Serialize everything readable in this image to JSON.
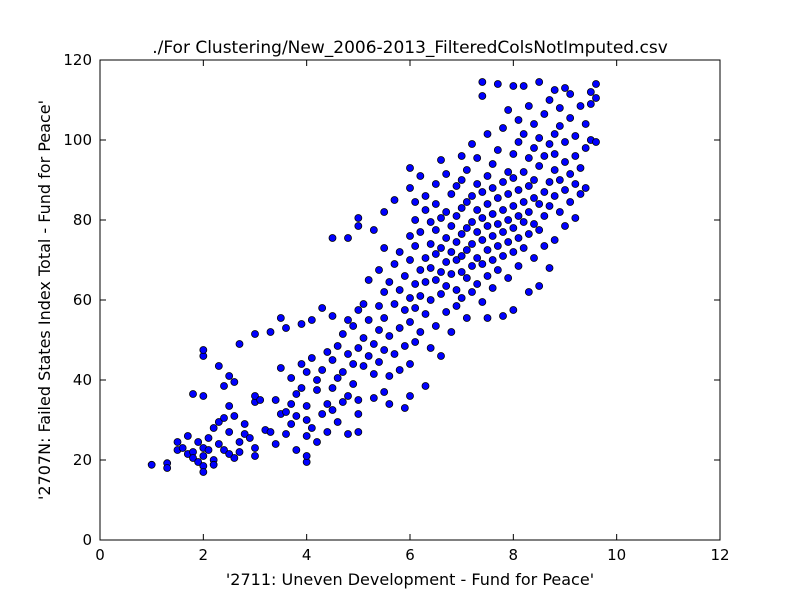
{
  "chart_data": {
    "type": "scatter",
    "title": "./For Clustering/New_2006-2013_FilteredColsNotImputed.csv",
    "xlabel": "'2711: Uneven Development - Fund for Peace'",
    "ylabel": "'2707N: Failed States Index Total - Fund for Peace'",
    "xlim": [
      0,
      12
    ],
    "ylim": [
      0,
      120
    ],
    "xticks": [
      "0",
      "2",
      "4",
      "6",
      "8",
      "10",
      "12"
    ],
    "yticks": [
      "0",
      "20",
      "40",
      "60",
      "80",
      "100",
      "120"
    ],
    "grid": false,
    "legend": "none",
    "marker_color": "#0000ff",
    "marker_edge_color": "#000000",
    "points": [
      [
        1.0,
        18.8
      ],
      [
        1.3,
        19.2
      ],
      [
        1.3,
        18.0
      ],
      [
        1.5,
        22.5
      ],
      [
        1.5,
        24.5
      ],
      [
        1.6,
        23.0
      ],
      [
        1.7,
        21.5
      ],
      [
        1.7,
        26.0
      ],
      [
        1.8,
        22.0
      ],
      [
        1.8,
        20.5
      ],
      [
        1.8,
        36.5
      ],
      [
        1.9,
        19.5
      ],
      [
        1.9,
        24.5
      ],
      [
        2.0,
        23.0
      ],
      [
        2.0,
        21.0
      ],
      [
        2.0,
        18.5
      ],
      [
        2.0,
        17.0
      ],
      [
        2.0,
        46.0
      ],
      [
        2.0,
        47.5
      ],
      [
        2.0,
        36.0
      ],
      [
        2.1,
        22.5
      ],
      [
        2.1,
        25.5
      ],
      [
        2.2,
        20.0
      ],
      [
        2.2,
        18.8
      ],
      [
        2.2,
        28.0
      ],
      [
        2.3,
        29.5
      ],
      [
        2.3,
        24.0
      ],
      [
        2.3,
        43.5
      ],
      [
        2.4,
        38.5
      ],
      [
        2.4,
        22.5
      ],
      [
        2.4,
        30.5
      ],
      [
        2.5,
        21.5
      ],
      [
        2.5,
        27.0
      ],
      [
        2.5,
        41.0
      ],
      [
        2.5,
        33.5
      ],
      [
        2.6,
        20.5
      ],
      [
        2.6,
        31.0
      ],
      [
        2.6,
        39.5
      ],
      [
        2.7,
        24.5
      ],
      [
        2.7,
        22.0
      ],
      [
        2.7,
        49.0
      ],
      [
        2.8,
        29.0
      ],
      [
        2.8,
        26.5
      ],
      [
        2.9,
        25.5
      ],
      [
        3.0,
        21.0
      ],
      [
        3.0,
        23.0
      ],
      [
        3.0,
        34.5
      ],
      [
        3.0,
        36.0
      ],
      [
        3.0,
        51.5
      ],
      [
        3.1,
        35.0
      ],
      [
        3.2,
        27.5
      ],
      [
        3.3,
        52.0
      ],
      [
        3.3,
        27.0
      ],
      [
        3.4,
        24.0
      ],
      [
        3.4,
        35.0
      ],
      [
        3.5,
        31.5
      ],
      [
        3.5,
        43.0
      ],
      [
        3.5,
        55.5
      ],
      [
        3.6,
        32.0
      ],
      [
        3.6,
        26.5
      ],
      [
        3.6,
        53.0
      ],
      [
        3.7,
        29.0
      ],
      [
        3.7,
        34.0
      ],
      [
        3.7,
        40.5
      ],
      [
        3.8,
        31.0
      ],
      [
        3.8,
        36.5
      ],
      [
        3.8,
        22.5
      ],
      [
        3.9,
        38.0
      ],
      [
        3.9,
        44.0
      ],
      [
        3.9,
        54.0
      ],
      [
        4.0,
        26.0
      ],
      [
        4.0,
        30.0
      ],
      [
        4.0,
        33.5
      ],
      [
        4.0,
        42.0
      ],
      [
        4.0,
        19.5
      ],
      [
        4.0,
        21.0
      ],
      [
        4.1,
        28.0
      ],
      [
        4.1,
        45.5
      ],
      [
        4.1,
        55.0
      ],
      [
        4.2,
        37.5
      ],
      [
        4.2,
        40.0
      ],
      [
        4.2,
        24.5
      ],
      [
        4.3,
        42.5
      ],
      [
        4.3,
        31.5
      ],
      [
        4.3,
        58.0
      ],
      [
        4.4,
        34.0
      ],
      [
        4.4,
        47.0
      ],
      [
        4.4,
        27.0
      ],
      [
        4.5,
        45.0
      ],
      [
        4.5,
        56.0
      ],
      [
        4.5,
        32.5
      ],
      [
        4.5,
        38.0
      ],
      [
        4.5,
        75.5
      ],
      [
        4.6,
        48.5
      ],
      [
        4.6,
        40.5
      ],
      [
        4.6,
        29.5
      ],
      [
        4.7,
        51.5
      ],
      [
        4.7,
        42.0
      ],
      [
        4.7,
        34.5
      ],
      [
        4.8,
        55.0
      ],
      [
        4.8,
        46.5
      ],
      [
        4.8,
        36.0
      ],
      [
        4.8,
        26.5
      ],
      [
        4.8,
        75.5
      ],
      [
        4.9,
        44.0
      ],
      [
        4.9,
        53.5
      ],
      [
        4.9,
        39.0
      ],
      [
        5.0,
        48.0
      ],
      [
        5.0,
        57.5
      ],
      [
        5.0,
        35.0
      ],
      [
        5.0,
        31.5
      ],
      [
        5.0,
        80.5
      ],
      [
        5.0,
        78.5
      ],
      [
        5.0,
        27.0
      ],
      [
        5.1,
        43.5
      ],
      [
        5.1,
        50.5
      ],
      [
        5.1,
        59.0
      ],
      [
        5.2,
        46.0
      ],
      [
        5.2,
        55.0
      ],
      [
        5.2,
        65.0
      ],
      [
        5.3,
        41.5
      ],
      [
        5.3,
        49.0
      ],
      [
        5.3,
        35.5
      ],
      [
        5.3,
        77.5
      ],
      [
        5.4,
        52.5
      ],
      [
        5.4,
        58.5
      ],
      [
        5.4,
        67.5
      ],
      [
        5.4,
        44.5
      ],
      [
        5.5,
        37.0
      ],
      [
        5.5,
        55.5
      ],
      [
        5.5,
        62.0
      ],
      [
        5.5,
        47.5
      ],
      [
        5.5,
        73.0
      ],
      [
        5.5,
        82.0
      ],
      [
        5.6,
        64.5
      ],
      [
        5.6,
        51.0
      ],
      [
        5.6,
        41.0
      ],
      [
        5.6,
        34.0
      ],
      [
        5.7,
        59.0
      ],
      [
        5.7,
        69.0
      ],
      [
        5.7,
        46.5
      ],
      [
        5.7,
        85.0
      ],
      [
        5.8,
        53.0
      ],
      [
        5.8,
        62.5
      ],
      [
        5.8,
        72.0
      ],
      [
        5.8,
        42.5
      ],
      [
        5.9,
        57.5
      ],
      [
        5.9,
        66.0
      ],
      [
        5.9,
        48.5
      ],
      [
        5.9,
        33.0
      ],
      [
        6.0,
        60.5
      ],
      [
        6.0,
        70.0
      ],
      [
        6.0,
        76.0
      ],
      [
        6.0,
        54.5
      ],
      [
        6.0,
        44.0
      ],
      [
        6.0,
        88.0
      ],
      [
        6.0,
        36.0
      ],
      [
        6.0,
        93.0
      ],
      [
        6.1,
        64.0
      ],
      [
        6.1,
        73.5
      ],
      [
        6.1,
        80.0
      ],
      [
        6.1,
        58.0
      ],
      [
        6.1,
        49.5
      ],
      [
        6.1,
        84.5
      ],
      [
        6.2,
        67.5
      ],
      [
        6.2,
        61.0
      ],
      [
        6.2,
        77.0
      ],
      [
        6.2,
        52.0
      ],
      [
        6.2,
        91.0
      ],
      [
        6.3,
        70.5
      ],
      [
        6.3,
        64.5
      ],
      [
        6.3,
        56.5
      ],
      [
        6.3,
        82.5
      ],
      [
        6.3,
        86.0
      ],
      [
        6.3,
        38.5
      ],
      [
        6.4,
        74.0
      ],
      [
        6.4,
        68.0
      ],
      [
        6.4,
        60.0
      ],
      [
        6.4,
        79.5
      ],
      [
        6.4,
        48.0
      ],
      [
        6.5,
        71.5
      ],
      [
        6.5,
        65.0
      ],
      [
        6.5,
        77.5
      ],
      [
        6.5,
        84.0
      ],
      [
        6.5,
        89.0
      ],
      [
        6.5,
        53.5
      ],
      [
        6.6,
        73.0
      ],
      [
        6.6,
        67.0
      ],
      [
        6.6,
        80.5
      ],
      [
        6.6,
        61.5
      ],
      [
        6.6,
        95.0
      ],
      [
        6.6,
        46.0
      ],
      [
        6.7,
        75.5
      ],
      [
        6.7,
        69.5
      ],
      [
        6.7,
        82.0
      ],
      [
        6.7,
        63.5
      ],
      [
        6.7,
        57.0
      ],
      [
        6.7,
        91.5
      ],
      [
        6.8,
        72.0
      ],
      [
        6.8,
        78.5
      ],
      [
        6.8,
        66.5
      ],
      [
        6.8,
        86.5
      ],
      [
        6.8,
        52.0
      ],
      [
        6.9,
        74.5
      ],
      [
        6.9,
        70.0
      ],
      [
        6.9,
        81.0
      ],
      [
        6.9,
        62.5
      ],
      [
        6.9,
        88.5
      ],
      [
        6.9,
        58.5
      ],
      [
        7.0,
        76.5
      ],
      [
        7.0,
        71.0
      ],
      [
        7.0,
        83.0
      ],
      [
        7.0,
        67.0
      ],
      [
        7.0,
        90.0
      ],
      [
        7.0,
        60.5
      ],
      [
        7.0,
        96.0
      ],
      [
        7.1,
        78.0
      ],
      [
        7.1,
        72.5
      ],
      [
        7.1,
        84.5
      ],
      [
        7.1,
        65.5
      ],
      [
        7.1,
        92.5
      ],
      [
        7.1,
        55.5
      ],
      [
        7.2,
        79.5
      ],
      [
        7.2,
        74.0
      ],
      [
        7.2,
        86.0
      ],
      [
        7.2,
        68.5
      ],
      [
        7.2,
        62.0
      ],
      [
        7.2,
        99.0
      ],
      [
        7.3,
        77.0
      ],
      [
        7.3,
        82.5
      ],
      [
        7.3,
        70.5
      ],
      [
        7.3,
        89.0
      ],
      [
        7.3,
        64.0
      ],
      [
        7.3,
        95.5
      ],
      [
        7.4,
        80.5
      ],
      [
        7.4,
        75.0
      ],
      [
        7.4,
        87.0
      ],
      [
        7.4,
        69.0
      ],
      [
        7.4,
        59.5
      ],
      [
        7.4,
        114.5
      ],
      [
        7.4,
        111.0
      ],
      [
        7.5,
        78.5
      ],
      [
        7.5,
        84.0
      ],
      [
        7.5,
        72.5
      ],
      [
        7.5,
        91.0
      ],
      [
        7.5,
        66.0
      ],
      [
        7.5,
        101.5
      ],
      [
        7.5,
        55.5
      ],
      [
        7.6,
        81.5
      ],
      [
        7.6,
        76.0
      ],
      [
        7.6,
        88.0
      ],
      [
        7.6,
        70.0
      ],
      [
        7.6,
        94.0
      ],
      [
        7.6,
        63.0
      ],
      [
        7.7,
        79.0
      ],
      [
        7.7,
        85.5
      ],
      [
        7.7,
        73.5
      ],
      [
        7.7,
        97.5
      ],
      [
        7.7,
        67.5
      ],
      [
        7.7,
        114.0
      ],
      [
        7.8,
        82.5
      ],
      [
        7.8,
        77.0
      ],
      [
        7.8,
        89.5
      ],
      [
        7.8,
        71.0
      ],
      [
        7.8,
        103.0
      ],
      [
        7.8,
        56.0
      ],
      [
        7.9,
        80.0
      ],
      [
        7.9,
        86.5
      ],
      [
        7.9,
        74.5
      ],
      [
        7.9,
        92.0
      ],
      [
        7.9,
        65.5
      ],
      [
        7.9,
        107.5
      ],
      [
        8.0,
        83.5
      ],
      [
        8.0,
        78.0
      ],
      [
        8.0,
        90.5
      ],
      [
        8.0,
        72.0
      ],
      [
        8.0,
        96.5
      ],
      [
        8.0,
        113.5
      ],
      [
        8.0,
        57.5
      ],
      [
        8.1,
        81.0
      ],
      [
        8.1,
        87.5
      ],
      [
        8.1,
        75.5
      ],
      [
        8.1,
        99.5
      ],
      [
        8.1,
        68.5
      ],
      [
        8.1,
        105.0
      ],
      [
        8.2,
        84.5
      ],
      [
        8.2,
        79.5
      ],
      [
        8.2,
        92.0
      ],
      [
        8.2,
        73.0
      ],
      [
        8.2,
        101.5
      ],
      [
        8.2,
        113.5
      ],
      [
        8.3,
        82.0
      ],
      [
        8.3,
        88.5
      ],
      [
        8.3,
        76.5
      ],
      [
        8.3,
        95.5
      ],
      [
        8.3,
        108.5
      ],
      [
        8.3,
        62.0
      ],
      [
        8.4,
        85.5
      ],
      [
        8.4,
        90.0
      ],
      [
        8.4,
        79.0
      ],
      [
        8.4,
        98.0
      ],
      [
        8.4,
        70.5
      ],
      [
        8.4,
        104.0
      ],
      [
        8.5,
        84.0
      ],
      [
        8.5,
        93.5
      ],
      [
        8.5,
        77.5
      ],
      [
        8.5,
        100.5
      ],
      [
        8.5,
        114.5
      ],
      [
        8.5,
        63.5
      ],
      [
        8.6,
        87.0
      ],
      [
        8.6,
        96.0
      ],
      [
        8.6,
        81.0
      ],
      [
        8.6,
        106.5
      ],
      [
        8.6,
        73.5
      ],
      [
        8.7,
        89.5
      ],
      [
        8.7,
        99.0
      ],
      [
        8.7,
        83.5
      ],
      [
        8.7,
        110.0
      ],
      [
        8.7,
        68.0
      ],
      [
        8.8,
        92.5
      ],
      [
        8.8,
        101.5
      ],
      [
        8.8,
        86.0
      ],
      [
        8.8,
        96.5
      ],
      [
        8.8,
        112.5
      ],
      [
        8.8,
        75.0
      ],
      [
        8.9,
        90.0
      ],
      [
        8.9,
        103.5
      ],
      [
        8.9,
        82.0
      ],
      [
        8.9,
        108.0
      ],
      [
        9.0,
        94.5
      ],
      [
        9.0,
        87.5
      ],
      [
        9.0,
        99.5
      ],
      [
        9.0,
        113.0
      ],
      [
        9.0,
        78.5
      ],
      [
        9.1,
        91.5
      ],
      [
        9.1,
        105.5
      ],
      [
        9.1,
        84.5
      ],
      [
        9.1,
        111.5
      ],
      [
        9.2,
        96.0
      ],
      [
        9.2,
        89.0
      ],
      [
        9.2,
        101.0
      ],
      [
        9.2,
        80.5
      ],
      [
        9.3,
        93.0
      ],
      [
        9.3,
        108.5
      ],
      [
        9.3,
        86.5
      ],
      [
        9.4,
        98.0
      ],
      [
        9.4,
        104.0
      ],
      [
        9.4,
        88.0
      ],
      [
        9.5,
        109.0
      ],
      [
        9.5,
        100.0
      ],
      [
        9.5,
        112.0
      ],
      [
        9.6,
        114.0
      ],
      [
        9.6,
        110.5
      ],
      [
        9.6,
        99.5
      ]
    ]
  }
}
